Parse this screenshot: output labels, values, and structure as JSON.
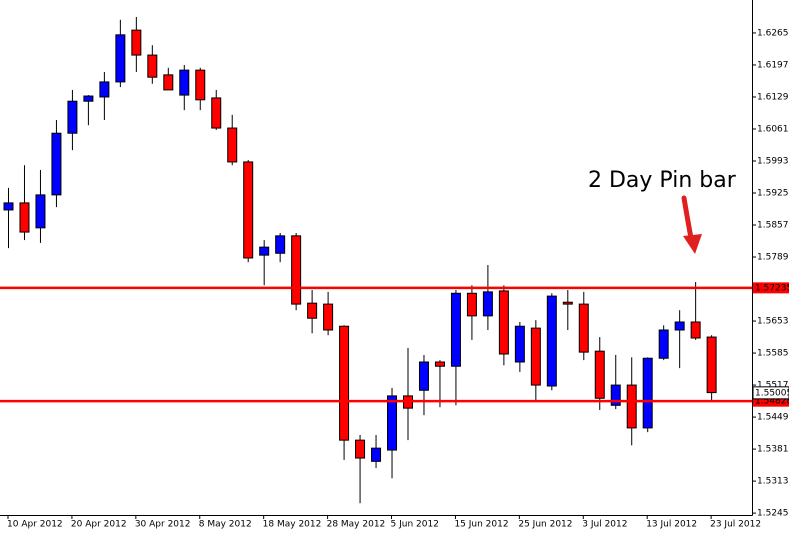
{
  "chart_data": {
    "type": "candlestick",
    "annotation": "2 Day Pin bar",
    "categories": [
      "10 Apr 2012",
      null,
      null,
      null,
      "20 Apr 2012",
      null,
      null,
      null,
      "30 Apr 2012",
      null,
      null,
      null,
      "8 May 2012",
      null,
      null,
      null,
      "18 May 2012",
      null,
      null,
      null,
      "28 May 2012",
      null,
      null,
      null,
      "5 Jun 2012",
      null,
      null,
      null,
      "15 Jun 2012",
      null,
      null,
      null,
      "25 Jun 2012",
      null,
      null,
      null,
      "3 Jul 2012",
      null,
      null,
      null,
      "13 Jul 2012",
      null,
      null,
      null,
      "23 Jul 2012"
    ],
    "open": [
      1.5889,
      1.5904,
      1.5851,
      1.5921,
      1.6052,
      1.612,
      1.6129,
      1.6161,
      1.6271,
      1.6218,
      1.6176,
      1.6133,
      1.6186,
      1.6127,
      1.6063,
      1.5991,
      1.5793,
      1.5797,
      1.5834,
      1.5691,
      1.5689,
      1.5642,
      1.54,
      1.5355,
      1.5379,
      1.5494,
      1.5506,
      1.5566,
      1.5557,
      1.5712,
      1.5664,
      1.5717,
      1.5566,
      1.5638,
      1.5515,
      1.5693,
      1.5689,
      1.5589,
      1.5474,
      1.5517,
      1.5426,
      1.5574,
      1.5634,
      1.5651,
      1.5619
    ],
    "high": [
      1.5936,
      1.5984,
      1.5974,
      1.608,
      1.6144,
      1.6133,
      1.6182,
      1.6293,
      1.6299,
      1.6239,
      1.6191,
      1.6197,
      1.6191,
      1.6144,
      1.6091,
      1.5995,
      1.5825,
      1.584,
      1.584,
      1.5719,
      1.5715,
      1.5644,
      1.5411,
      1.5411,
      1.5511,
      1.5596,
      1.5581,
      1.557,
      1.5719,
      1.5729,
      1.5772,
      1.5729,
      1.5651,
      1.5655,
      1.5712,
      1.5719,
      1.5715,
      1.5619,
      1.5581,
      1.5576,
      1.5576,
      1.5644,
      1.5676,
      1.5736,
      1.5623
    ],
    "low": [
      1.5808,
      1.5825,
      1.5819,
      1.5895,
      1.6016,
      1.6069,
      1.608,
      1.615,
      1.6182,
      1.6157,
      1.6144,
      1.6101,
      1.6101,
      1.6059,
      1.5984,
      1.5778,
      1.5729,
      1.5778,
      1.5676,
      1.5627,
      1.5623,
      1.5358,
      1.5266,
      1.5341,
      1.5319,
      1.54,
      1.5453,
      1.547,
      1.5474,
      1.5613,
      1.5634,
      1.5559,
      1.5545,
      1.5485,
      1.5506,
      1.5634,
      1.557,
      1.5464,
      1.5466,
      1.5389,
      1.5417,
      1.557,
      1.5553,
      1.5613,
      1.5485
    ],
    "close": [
      1.5904,
      1.5842,
      1.5921,
      1.6052,
      1.612,
      1.6131,
      1.6161,
      1.6261,
      1.6218,
      1.6171,
      1.6144,
      1.6186,
      1.6123,
      1.6063,
      1.5991,
      1.5787,
      1.581,
      1.5834,
      1.5689,
      1.5659,
      1.5634,
      1.54,
      1.5362,
      1.5383,
      1.5494,
      1.5468,
      1.5566,
      1.5557,
      1.5712,
      1.5664,
      1.5715,
      1.5583,
      1.5642,
      1.5517,
      1.5706,
      1.5689,
      1.5587,
      1.5489,
      1.5517,
      1.5426,
      1.5574,
      1.5634,
      1.5651,
      1.5617,
      1.5501
    ],
    "up_color": "#0000ff",
    "down_color": "#ff0000",
    "ylim": [
      1.5241,
      1.6335
    ],
    "yticks": [
      {
        "value": 1.6265,
        "label": "1.62650"
      },
      {
        "value": 1.6197,
        "label": "1.61970"
      },
      {
        "value": 1.6129,
        "label": "1.61290"
      },
      {
        "value": 1.6061,
        "label": "1.60610"
      },
      {
        "value": 1.5993,
        "label": "1.59930"
      },
      {
        "value": 1.5925,
        "label": "1.59250"
      },
      {
        "value": 1.5857,
        "label": "1.58570"
      },
      {
        "value": 1.5789,
        "label": "1.57890"
      },
      {
        "value": 1.5653,
        "label": "1.56530"
      },
      {
        "value": 1.5585,
        "label": "1.55850"
      },
      {
        "value": 1.5517,
        "label": "1.55170"
      },
      {
        "value": 1.5449,
        "label": "1.54490"
      },
      {
        "value": 1.5381,
        "label": "1.53810"
      },
      {
        "value": 1.5313,
        "label": "1.53130"
      },
      {
        "value": 1.5245,
        "label": "1.52450"
      }
    ],
    "hlines": [
      {
        "value": 1.57235,
        "label": "1.57235"
      },
      {
        "value": 1.54828,
        "label": "1.54828"
      }
    ],
    "hline_color": "#ff0000",
    "last_price": {
      "value": 1.55005,
      "label": "1.55005"
    }
  }
}
